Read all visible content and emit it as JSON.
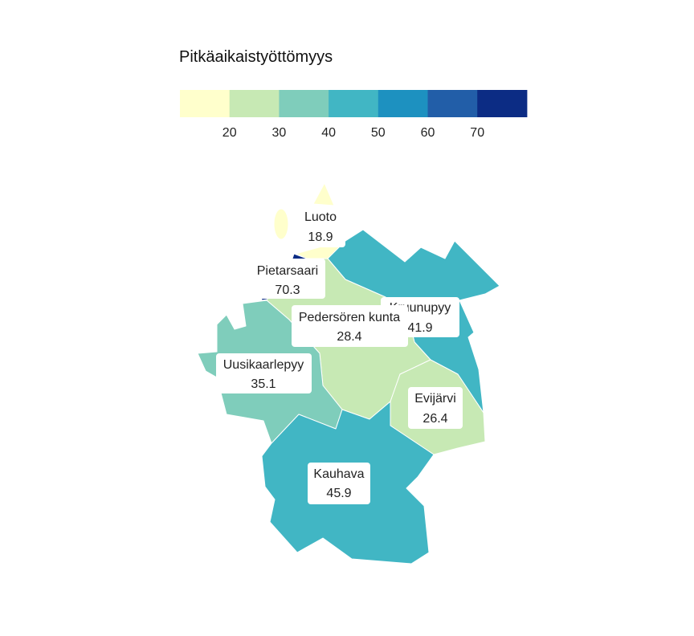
{
  "legend": {
    "title": "Pitkäaikaistyöttömyys",
    "bins": [
      {
        "color": "#ffffcc"
      },
      {
        "color": "#c7e9b4"
      },
      {
        "color": "#7fcdbb"
      },
      {
        "color": "#41b6c4"
      },
      {
        "color": "#1d91c0"
      },
      {
        "color": "#225ea8"
      },
      {
        "color": "#0c2c84"
      }
    ],
    "ticks": [
      "20",
      "30",
      "40",
      "50",
      "60",
      "70"
    ]
  },
  "regions": [
    {
      "id": "luoto",
      "name": "Luoto",
      "value": "18.9",
      "color": "#ffffcc"
    },
    {
      "id": "pietarsaari",
      "name": "Pietarsaari",
      "value": "70.3",
      "color": "#0c2c84"
    },
    {
      "id": "kruunupyy",
      "name": "Kruunupyy",
      "value": "41.9",
      "color": "#41b6c4"
    },
    {
      "id": "pedersoren-kunta",
      "name": "Pedersören kunta",
      "value": "28.4",
      "color": "#c7e9b4"
    },
    {
      "id": "uusikaarlepyy",
      "name": "Uusikaarlepyy",
      "value": "35.1",
      "color": "#7fcdbb"
    },
    {
      "id": "evijarvi",
      "name": "Evijärvi",
      "value": "26.4",
      "color": "#c7e9b4"
    },
    {
      "id": "kauhava",
      "name": "Kauhava",
      "value": "45.9",
      "color": "#41b6c4"
    }
  ]
}
